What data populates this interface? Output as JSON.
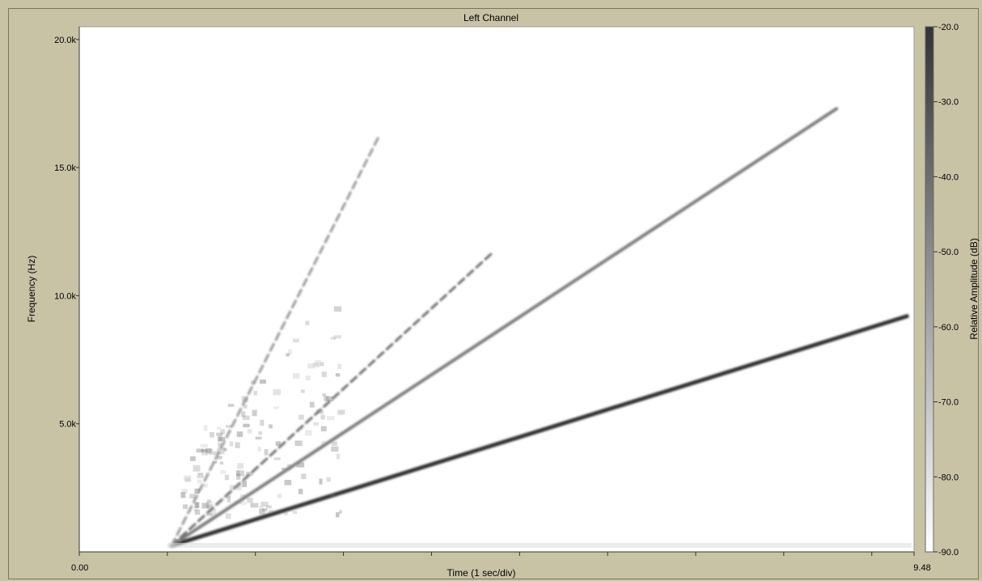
{
  "chart_data": {
    "type": "heatmap",
    "title": "Left Channel",
    "xlabel": "Time (1 sec/div)",
    "ylabel": "Frequency (Hz)",
    "colorbar_label": "Relative Amplitude (dB)",
    "xlim": [
      0.0,
      9.48
    ],
    "ylim": [
      0,
      20500
    ],
    "x_ticks": [
      0,
      1,
      2,
      3,
      4,
      5,
      6,
      7,
      8,
      9
    ],
    "x_tick_labels": [
      "0.00",
      "9.48"
    ],
    "y_ticks": [
      {
        "value": 5000,
        "label": "5.0k"
      },
      {
        "value": 10000,
        "label": "10.0k"
      },
      {
        "value": 15000,
        "label": "15.0k"
      },
      {
        "value": 20000,
        "label": "20.0k"
      }
    ],
    "colorbar": {
      "range": [
        -90.0,
        -20.0
      ],
      "ticks": [
        "-20.0",
        "-30.0",
        "-40.0",
        "-50.0",
        "-60.0",
        "-70.0",
        "-80.0",
        "-90.0"
      ],
      "tick_values": [
        -20,
        -30,
        -40,
        -50,
        -60,
        -70,
        -80,
        -90
      ]
    },
    "series": [
      {
        "start": [
          1.05,
          250
        ],
        "end": [
          9.4,
          9200
        ],
        "level": -20
      },
      {
        "start": [
          1.05,
          250
        ],
        "end": [
          8.6,
          17300
        ],
        "level": -45
      },
      {
        "start": [
          1.05,
          250
        ],
        "end": [
          4.7,
          11700
        ],
        "level": -40
      },
      {
        "start": [
          1.05,
          250
        ],
        "end": [
          3.4,
          16200
        ],
        "level": -55
      }
    ]
  }
}
